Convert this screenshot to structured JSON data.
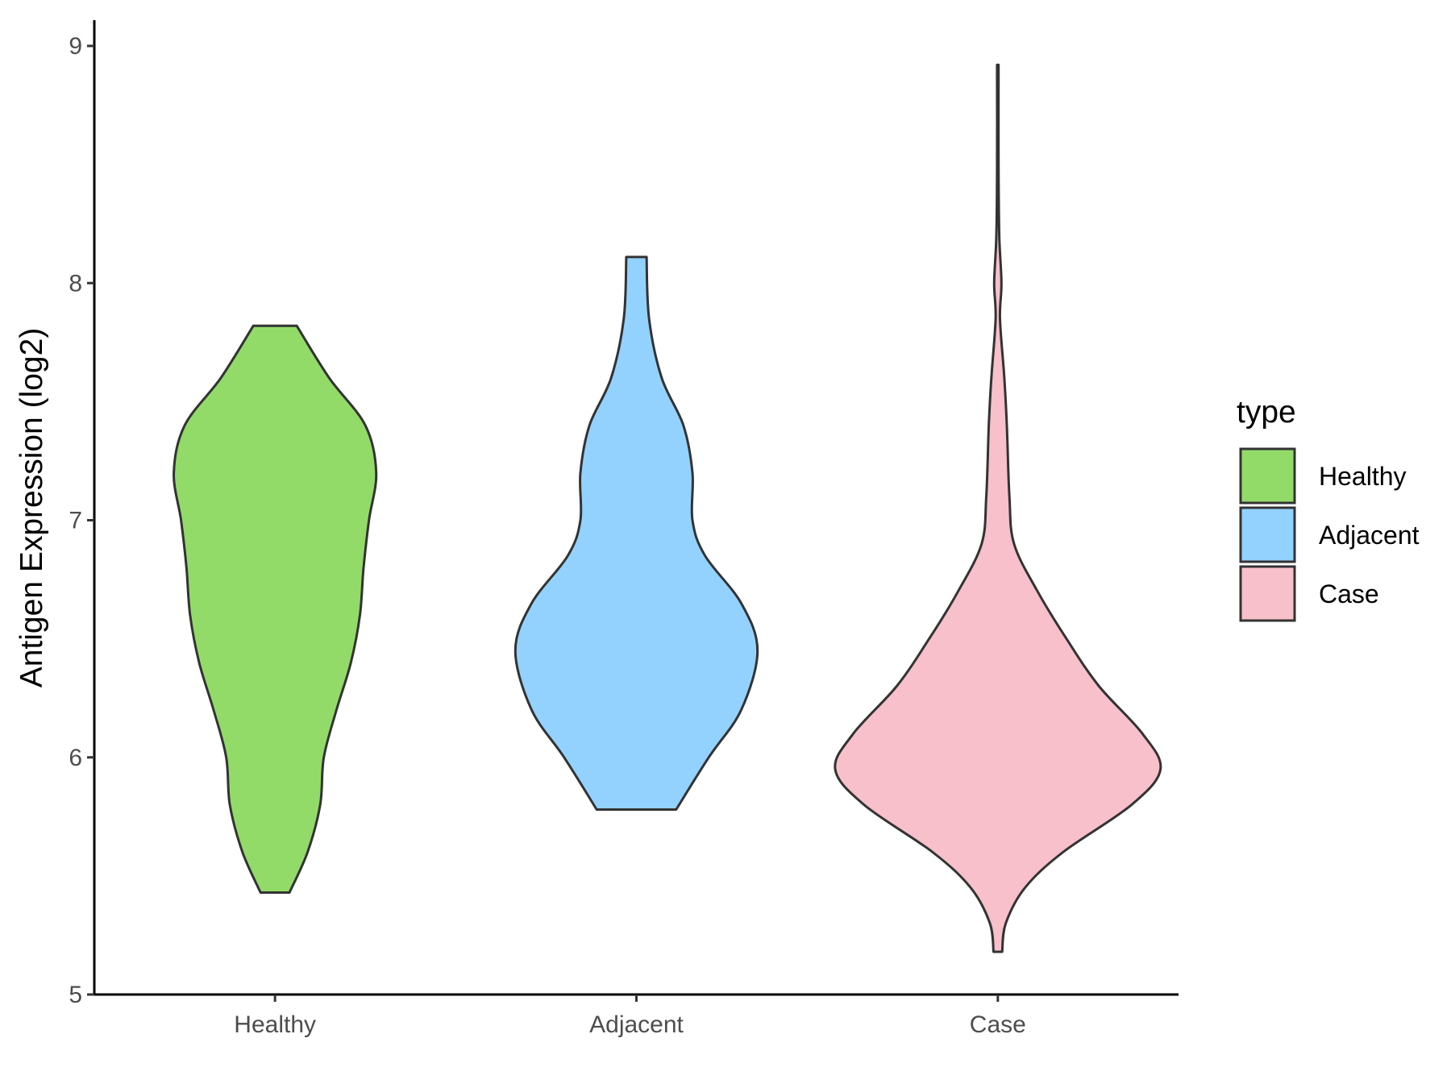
{
  "chart_data": {
    "type": "violin",
    "title": "",
    "xlabel": "",
    "ylabel": "Antigen Expression (log2)",
    "ylim": [
      5,
      9.1
    ],
    "yticks": [
      5,
      6,
      7,
      8,
      9
    ],
    "categories": [
      "Healthy",
      "Adjacent",
      "Case"
    ],
    "legend": {
      "title": "type",
      "position": "right",
      "entries": [
        "Healthy",
        "Adjacent",
        "Case"
      ]
    },
    "grid": false,
    "series": [
      {
        "name": "Healthy",
        "color": "#93db69",
        "min": 5.43,
        "max": 7.82,
        "density_profile": [
          {
            "y": 5.43,
            "w": 0.04
          },
          {
            "y": 5.6,
            "w": 0.09
          },
          {
            "y": 5.8,
            "w": 0.125
          },
          {
            "y": 6.0,
            "w": 0.135
          },
          {
            "y": 6.2,
            "w": 0.17
          },
          {
            "y": 6.4,
            "w": 0.21
          },
          {
            "y": 6.6,
            "w": 0.235
          },
          {
            "y": 6.8,
            "w": 0.245
          },
          {
            "y": 7.0,
            "w": 0.26
          },
          {
            "y": 7.2,
            "w": 0.28
          },
          {
            "y": 7.4,
            "w": 0.25
          },
          {
            "y": 7.6,
            "w": 0.15
          },
          {
            "y": 7.82,
            "w": 0.06
          }
        ]
      },
      {
        "name": "Adjacent",
        "color": "#93d2ff",
        "min": 5.78,
        "max": 8.11,
        "density_profile": [
          {
            "y": 5.78,
            "w": 0.11
          },
          {
            "y": 6.0,
            "w": 0.2
          },
          {
            "y": 6.2,
            "w": 0.29
          },
          {
            "y": 6.45,
            "w": 0.335
          },
          {
            "y": 6.65,
            "w": 0.29
          },
          {
            "y": 6.85,
            "w": 0.19
          },
          {
            "y": 7.0,
            "w": 0.155
          },
          {
            "y": 7.2,
            "w": 0.155
          },
          {
            "y": 7.4,
            "w": 0.13
          },
          {
            "y": 7.6,
            "w": 0.07
          },
          {
            "y": 7.85,
            "w": 0.035
          },
          {
            "y": 8.11,
            "w": 0.028
          }
        ]
      },
      {
        "name": "Case",
        "color": "#f7c0cb",
        "min": 5.18,
        "max": 8.92,
        "density_profile": [
          {
            "y": 5.18,
            "w": 0.012
          },
          {
            "y": 5.3,
            "w": 0.022
          },
          {
            "y": 5.45,
            "w": 0.075
          },
          {
            "y": 5.6,
            "w": 0.18
          },
          {
            "y": 5.8,
            "w": 0.37
          },
          {
            "y": 5.95,
            "w": 0.45
          },
          {
            "y": 6.1,
            "w": 0.4
          },
          {
            "y": 6.3,
            "w": 0.28
          },
          {
            "y": 6.5,
            "w": 0.19
          },
          {
            "y": 6.7,
            "w": 0.11
          },
          {
            "y": 6.9,
            "w": 0.045
          },
          {
            "y": 7.1,
            "w": 0.032
          },
          {
            "y": 7.4,
            "w": 0.025
          },
          {
            "y": 7.6,
            "w": 0.018
          },
          {
            "y": 7.85,
            "w": 0.006
          },
          {
            "y": 8.0,
            "w": 0.01
          },
          {
            "y": 8.2,
            "w": 0.004
          },
          {
            "y": 8.5,
            "w": 0.002
          },
          {
            "y": 8.92,
            "w": 0.002
          }
        ]
      }
    ]
  }
}
